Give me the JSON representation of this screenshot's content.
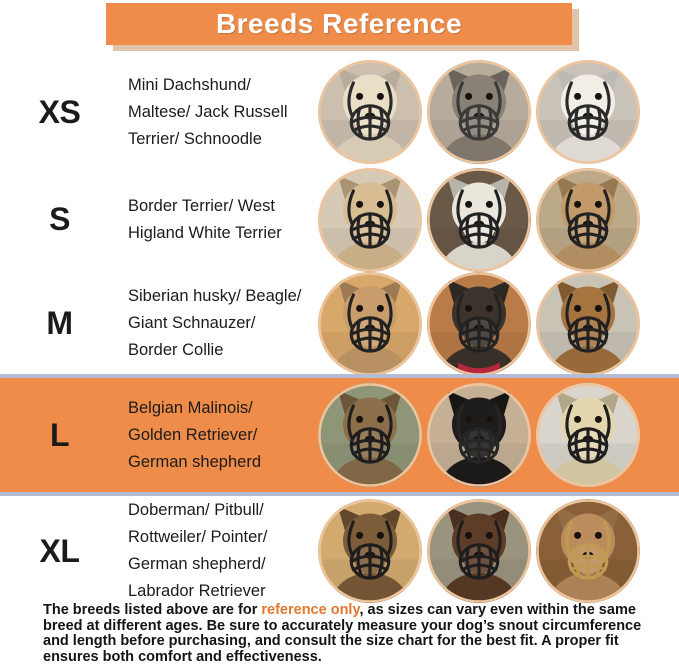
{
  "header": {
    "title": "Breeds Reference",
    "bg_color": "#ef8c4a",
    "shadow_color": "#e0c3a8"
  },
  "highlight": {
    "band_color": "#ef8c4a",
    "band_border_color": "#b3bdd6"
  },
  "photo_ring_color": "#eec49c",
  "rows": [
    {
      "size": "XS",
      "lines": [
        "Mini Dachshund/",
        "Maltese/ Jack Russell",
        "Terrier/ Schnoodle"
      ],
      "highlighted": false,
      "photos": [
        {
          "desc": "cream puppy wearing black basket muzzle",
          "fur": "#e9dec6",
          "bg": "#cdbfae",
          "muzzle": "#2a2a2a"
        },
        {
          "desc": "grey scruffy terrier wearing black basket muzzle",
          "fur": "#8a8176",
          "bg": "#b7ab9c",
          "muzzle": "#3a3a38"
        },
        {
          "desc": "white fluffy maltese wearing black basket muzzle",
          "fur": "#f2eee6",
          "bg": "#c9c2b8",
          "muzzle": "#2a2a2a"
        }
      ]
    },
    {
      "size": "S",
      "lines": [
        "Border Terrier/ West",
        "Higland White Terrier"
      ],
      "highlighted": false,
      "photos": [
        {
          "desc": "tan and white boxer pup wearing black basket muzzle",
          "fur": "#d9bd92",
          "bg": "#d6c9b5",
          "muzzle": "#222222"
        },
        {
          "desc": "white pitbull on wooden deck wearing black basket muzzle",
          "fur": "#eae6dc",
          "bg": "#6b5948",
          "muzzle": "#222222"
        },
        {
          "desc": "tan mastiff wearing black basket muzzle",
          "fur": "#c29a6a",
          "bg": "#bca988",
          "muzzle": "#222222"
        }
      ]
    },
    {
      "size": "M",
      "lines": [
        "Siberian husky/ Beagle/",
        "Giant Schnauzer/",
        "Border Collie"
      ],
      "highlighted": false,
      "photos": [
        {
          "desc": "tan hound wearing black basket muzzle",
          "fur": "#c99d6b",
          "bg": "#d8a86a",
          "muzzle": "#222222"
        },
        {
          "desc": "black curly dog with red collar wearing black basket muzzle",
          "fur": "#3c342c",
          "bg": "#b97b47",
          "muzzle": "#222222",
          "collar": "#b5273a"
        },
        {
          "desc": "brown dog on gravel wearing black basket muzzle",
          "fur": "#a5743f",
          "bg": "#c9c3b6",
          "muzzle": "#222222"
        }
      ]
    },
    {
      "size": "L",
      "lines": [
        "Belgian Malinois/",
        "Golden Retriever/",
        "German shepherd"
      ],
      "highlighted": true,
      "photos": [
        {
          "desc": "german shepherd wearing black basket muzzle",
          "fur": "#8a6f4a",
          "bg": "#8f9678",
          "muzzle": "#1e1e1e"
        },
        {
          "desc": "black dog on stone background wearing black basket muzzle",
          "fur": "#1f1d1c",
          "bg": "#c5b096",
          "muzzle": "#262626"
        },
        {
          "desc": "cream white shepherd wearing black basket muzzle",
          "fur": "#e3d5ae",
          "bg": "#d9d5cd",
          "muzzle": "#1e1e1e"
        }
      ]
    },
    {
      "size": "XL",
      "lines": [
        "Doberman/ Pitbull/",
        "Rottweiler/ Pointer/",
        "German shepherd/",
        "Labrador Retriever"
      ],
      "highlighted": false,
      "photos": [
        {
          "desc": "brindle pitbull wearing black basket muzzle",
          "fur": "#7d5c39",
          "bg": "#d2aa70",
          "muzzle": "#1e1e1e"
        },
        {
          "desc": "brown doberman wearing black basket muzzle",
          "fur": "#5d3d28",
          "bg": "#9a947f",
          "muzzle": "#1e1e1e"
        },
        {
          "desc": "tan pitbull wearing tan basket muzzle",
          "fur": "#bb8d5c",
          "bg": "#8a6038",
          "muzzle": "#c09a52"
        }
      ]
    }
  ],
  "footer": {
    "text_before": "The breeds listed above are for ",
    "highlight": "reference only",
    "text_after": ", as sizes can vary even within the same breed at different ages. Be sure to accurately measure your dog’s snout circumference and length before purchasing, and consult the size chart for the best fit. A proper fit ensures both comfort and effectiveness.",
    "highlight_color": "#e2772e"
  }
}
